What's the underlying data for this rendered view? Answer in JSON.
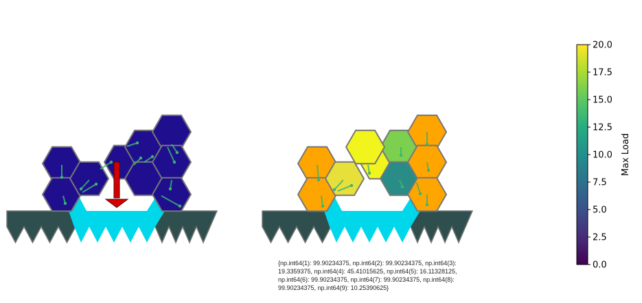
{
  "caption": "{np.int64(1): 99.90234375, np.int64(2): 99.90234375, np.int64(3): 19.3359375, np.int64(4): 45.41015625, np.int64(5): 16.11328125, np.int64(6): 99.90234375, np.int64(7): 99.90234375, np.int64(8): 99.90234375, np.int64(9): 10.25390625}",
  "chart_data": {
    "type": "heatmap",
    "colorbar": {
      "label": "Max Load",
      "range": [
        0,
        20
      ],
      "ticks": [
        "0.0",
        "2.5",
        "5.0",
        "7.5",
        "10.0",
        "12.5",
        "15.0",
        "17.5",
        "20.0"
      ],
      "colormap": "viridis"
    },
    "structure_left": {
      "cell_colors": [
        "#1f0f8f",
        "#1f0f8f",
        "#1f0f8f",
        "#1f0f8f",
        "#1f0f8f",
        "#1f0f8f",
        "#1f0f8f",
        "#1f0f8f",
        "#1f0f8f",
        "#1f0f8f",
        "#1f0f8f"
      ],
      "load_arrow_color": "#d40000"
    },
    "structure_right": {
      "cell_colors": [
        "#ffa500",
        "#ffa500",
        "#e8e03a",
        "#f2f51d",
        "#ffa500",
        "#7dcf4f",
        "#2a8c86",
        "#ffa500",
        "#ffa500",
        "#ffa500"
      ]
    },
    "ground_color": "#2f4f4f",
    "support_color": "#00d7ea",
    "hex_edge_color": "#777777",
    "vector_color": "#3cb371"
  }
}
